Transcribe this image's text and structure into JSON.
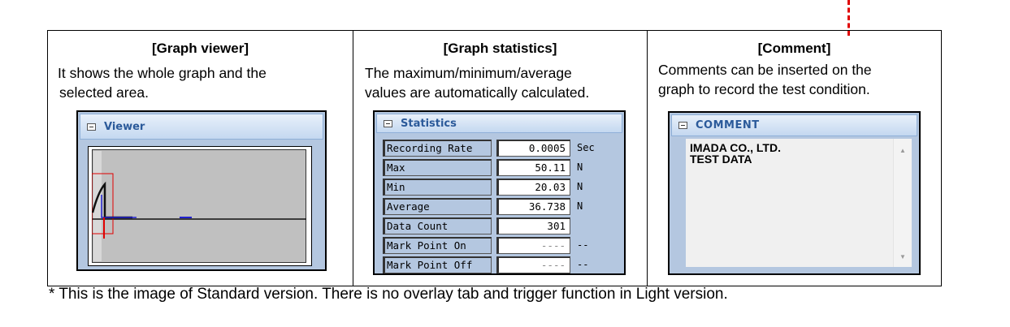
{
  "columns": [
    {
      "heading": "[Graph viewer]",
      "description": [
        "It shows the whole graph and the",
        "selected area."
      ]
    },
    {
      "heading": "[Graph statistics]",
      "description": [
        "The maximum/minimum/average",
        "values are automatically calculated."
      ]
    },
    {
      "heading": "[Comment]",
      "description": [
        "Comments can be inserted on the",
        "graph to record the test condition."
      ]
    }
  ],
  "viewer": {
    "title": "Viewer",
    "collapse_icon": "minus-box-icon"
  },
  "statistics": {
    "title": "Statistics",
    "rows": [
      {
        "label": "Recording Rate",
        "value": "0.0005",
        "unit": "Sec"
      },
      {
        "label": "Max",
        "value": "50.11",
        "unit": "N"
      },
      {
        "label": "Min",
        "value": "20.03",
        "unit": "N"
      },
      {
        "label": "Average",
        "value": "36.738",
        "unit": "N"
      },
      {
        "label": "Data Count",
        "value": "301",
        "unit": ""
      },
      {
        "label": "Mark Point On",
        "value": "----",
        "unit": "--"
      },
      {
        "label": "Mark Point Off",
        "value": "----",
        "unit": "--"
      }
    ]
  },
  "comment": {
    "title": "COMMENT",
    "text": [
      "IMADA CO., LTD.",
      "TEST DATA"
    ]
  },
  "footnote": "* This is the image of Standard version. There is no overlay tab and trigger function in Light version.",
  "colors": {
    "panel_bg": "#b4c7e0",
    "panel_title": "#2b5a9a",
    "marker": "#e00000"
  }
}
